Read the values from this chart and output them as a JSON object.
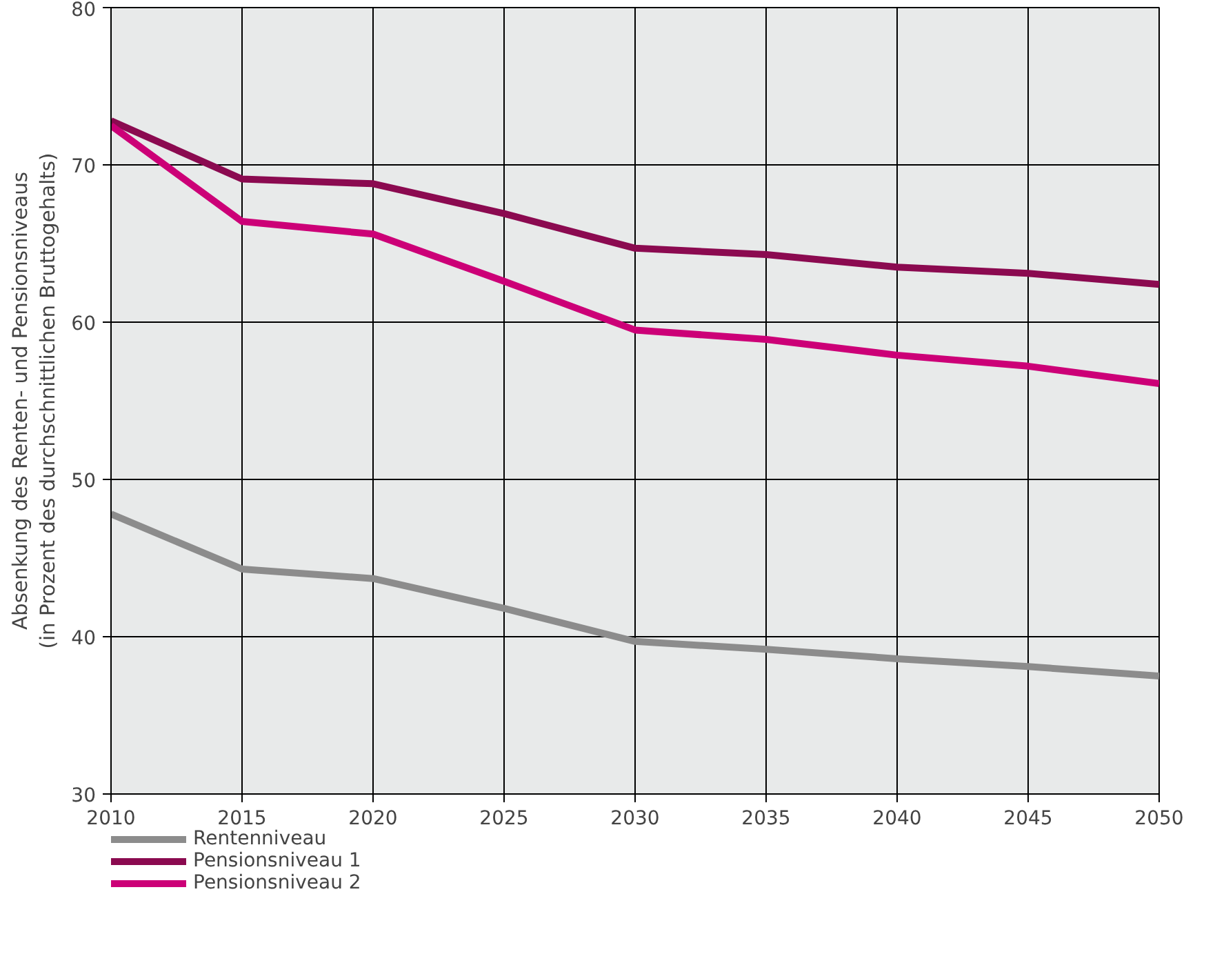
{
  "chart_data": {
    "type": "line",
    "ylabel": "Absenkung des Renten- und Pensionsniveaus\n(in Prozent des durchschnittlichen Bruttogehalts)",
    "x": [
      2010,
      2015,
      2020,
      2025,
      2030,
      2035,
      2040,
      2045,
      2050
    ],
    "series": [
      {
        "name": "Rentenniveau",
        "color": "#8c8c8c",
        "values": [
          47.8,
          44.3,
          43.7,
          41.8,
          39.7,
          39.2,
          38.6,
          38.1,
          37.5
        ]
      },
      {
        "name": "Pensionsniveau 1",
        "color": "#8b0a50",
        "values": [
          72.8,
          69.1,
          68.8,
          66.9,
          64.7,
          64.3,
          63.5,
          63.1,
          62.4
        ]
      },
      {
        "name": "Pensionsniveau 2",
        "color": "#cc0077",
        "values": [
          72.5,
          66.4,
          65.6,
          62.6,
          59.5,
          58.9,
          57.9,
          57.2,
          56.1
        ]
      }
    ],
    "xlim": [
      2010,
      2050
    ],
    "xticks": [
      2010,
      2015,
      2020,
      2025,
      2030,
      2035,
      2040,
      2045,
      2050
    ],
    "ylim": [
      30,
      80
    ],
    "yticks": [
      30,
      40,
      50,
      60,
      70,
      80
    ],
    "grid": true,
    "legend": "bottom left",
    "marker": "none",
    "line_style": "solid"
  }
}
